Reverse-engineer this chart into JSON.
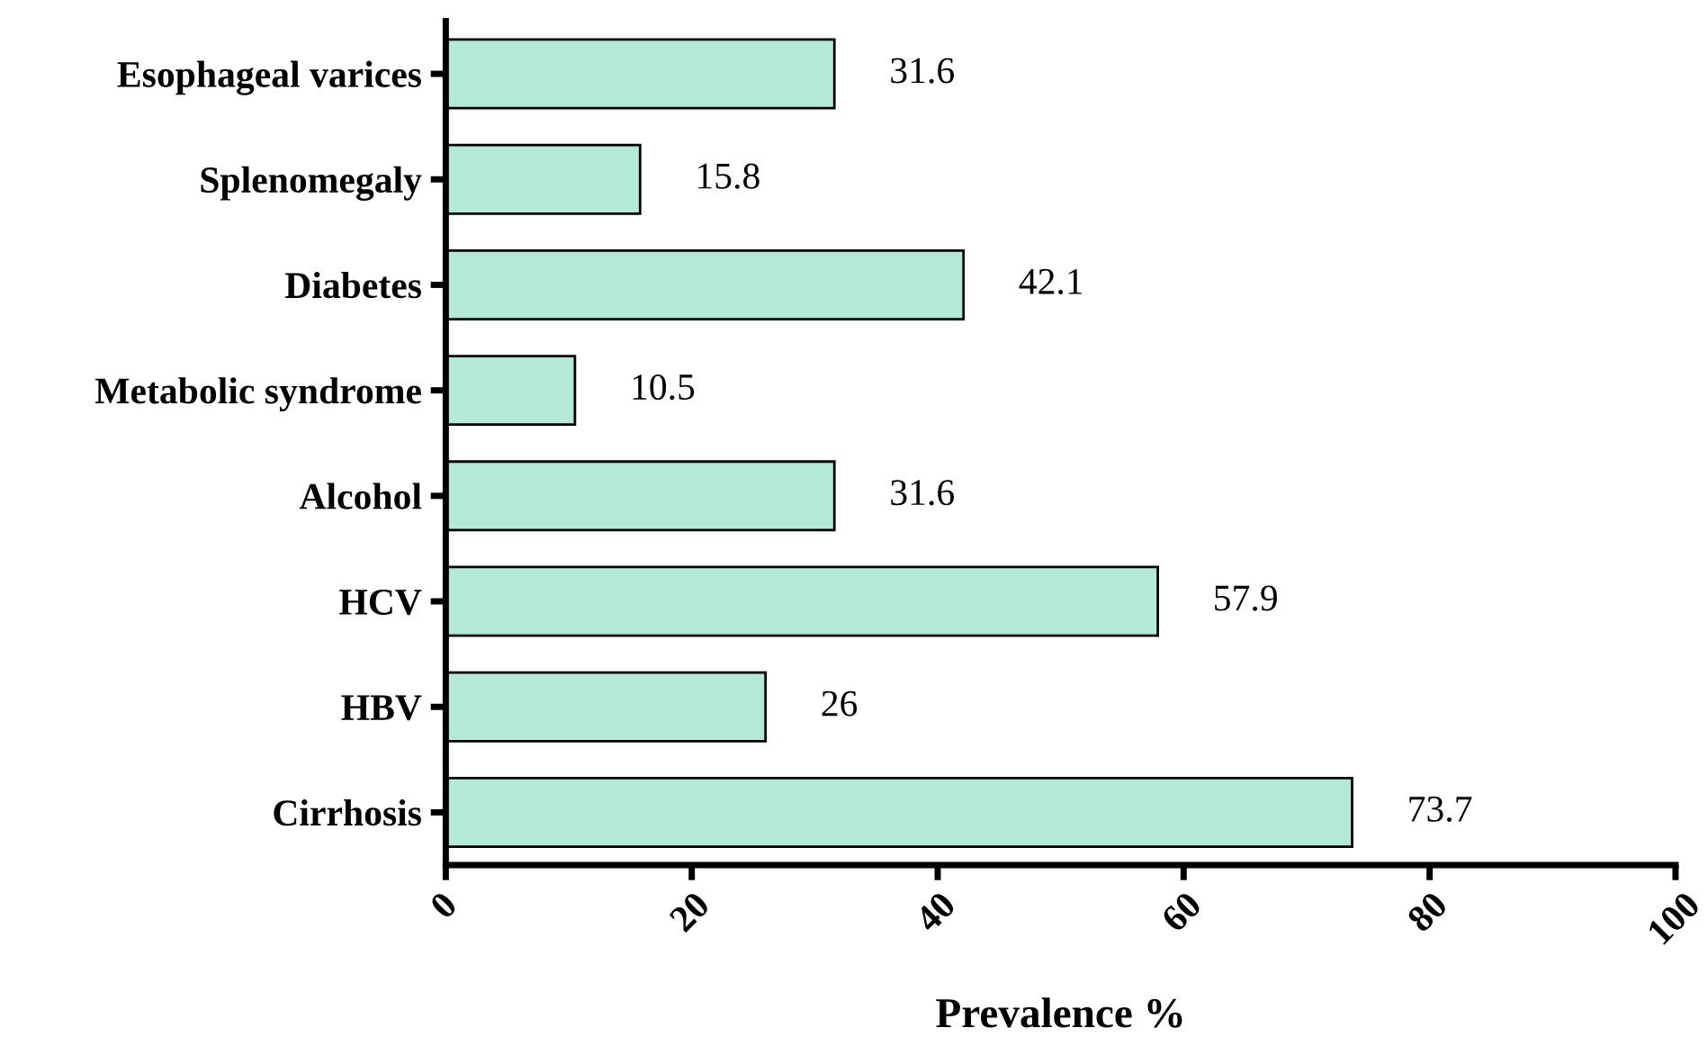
{
  "chart_data": {
    "type": "bar",
    "orientation": "horizontal",
    "xlabel": "Prevalence %",
    "categories": [
      "Esophageal varices",
      "Splenomegaly",
      "Diabetes",
      "Metabolic syndrome",
      "Alcohol",
      "HCV",
      "HBV",
      "Cirrhosis"
    ],
    "values": [
      31.6,
      15.8,
      42.1,
      10.5,
      31.6,
      57.9,
      26,
      73.7
    ],
    "color": "#b5e9d7",
    "xlim": [
      0,
      100
    ],
    "xticks": [
      0,
      20,
      40,
      60,
      80,
      100
    ],
    "data_labels": true,
    "grid": false,
    "legend": false
  }
}
